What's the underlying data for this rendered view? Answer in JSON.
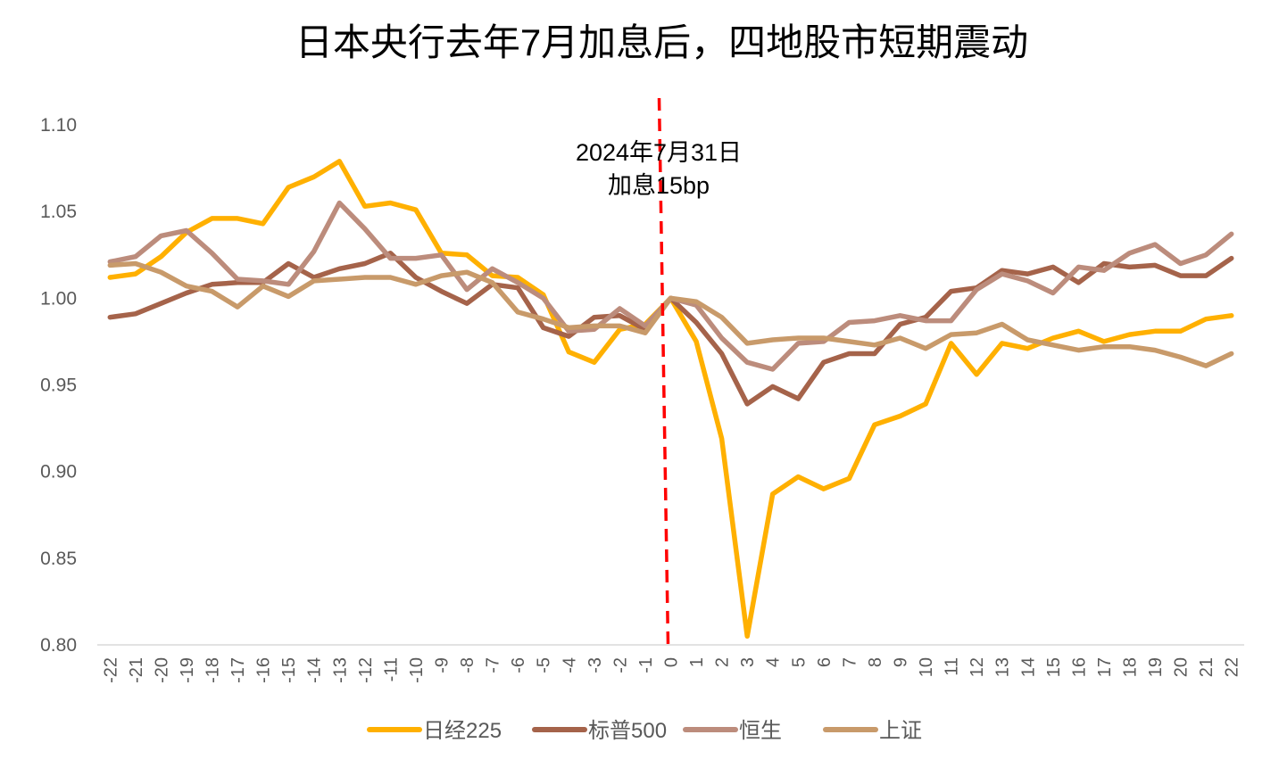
{
  "chart_data": {
    "type": "line",
    "title": "日本央行去年7月加息后，四地股市短期震动",
    "xlabel": "",
    "ylabel": "",
    "x": [
      -22,
      -21,
      -20,
      -19,
      -18,
      -17,
      -16,
      -15,
      -14,
      -13,
      -12,
      -11,
      -10,
      -9,
      -8,
      -7,
      -6,
      -5,
      -4,
      -3,
      -2,
      -1,
      0,
      1,
      2,
      3,
      4,
      5,
      6,
      7,
      8,
      9,
      10,
      11,
      12,
      13,
      14,
      15,
      16,
      17,
      18,
      19,
      20,
      21,
      22
    ],
    "ylim": [
      0.8,
      1.1
    ],
    "yticks": [
      "0.80",
      "0.85",
      "0.90",
      "0.95",
      "1.00",
      "1.05",
      "1.10"
    ],
    "ytick_values": [
      0.8,
      0.85,
      0.9,
      0.95,
      1.0,
      1.05,
      1.1
    ],
    "grid": false,
    "legend_position": "bottom",
    "series": [
      {
        "name": "日经225",
        "color": "#FFB000",
        "values": [
          1.012,
          1.014,
          1.024,
          1.038,
          1.046,
          1.046,
          1.043,
          1.064,
          1.07,
          1.079,
          1.053,
          1.055,
          1.051,
          1.026,
          1.025,
          1.013,
          1.012,
          1.002,
          0.969,
          0.963,
          0.982,
          0.985,
          1.0,
          0.975,
          0.919,
          0.805,
          0.887,
          0.897,
          0.89,
          0.896,
          0.927,
          0.932,
          0.939,
          0.974,
          0.956,
          0.974,
          0.971,
          0.977,
          0.981,
          0.975,
          0.979,
          0.981,
          0.981,
          0.988,
          0.99
        ]
      },
      {
        "name": "标普500",
        "color": "#A5634A",
        "values": [
          0.989,
          0.991,
          0.997,
          1.003,
          1.008,
          1.009,
          1.009,
          1.02,
          1.012,
          1.017,
          1.02,
          1.026,
          1.012,
          1.004,
          0.997,
          1.008,
          1.006,
          0.983,
          0.978,
          0.989,
          0.99,
          0.982,
          1.0,
          0.986,
          0.968,
          0.939,
          0.949,
          0.942,
          0.963,
          0.968,
          0.968,
          0.985,
          0.989,
          1.004,
          1.006,
          1.016,
          1.014,
          1.018,
          1.009,
          1.02,
          1.018,
          1.019,
          1.013,
          1.013,
          1.023
        ]
      },
      {
        "name": "恒生",
        "color": "#BC8C7C",
        "values": [
          1.021,
          1.024,
          1.036,
          1.039,
          1.026,
          1.011,
          1.01,
          1.008,
          1.027,
          1.055,
          1.04,
          1.023,
          1.023,
          1.025,
          1.005,
          1.017,
          1.009,
          1.0,
          0.981,
          0.982,
          0.994,
          0.984,
          1.0,
          0.996,
          0.977,
          0.963,
          0.959,
          0.974,
          0.975,
          0.986,
          0.987,
          0.99,
          0.987,
          0.987,
          1.005,
          1.014,
          1.01,
          1.003,
          1.018,
          1.016,
          1.026,
          1.031,
          1.02,
          1.025,
          1.037
        ]
      },
      {
        "name": "上证",
        "color": "#C89A6A",
        "values": [
          1.019,
          1.02,
          1.015,
          1.007,
          1.004,
          0.995,
          1.007,
          1.001,
          1.01,
          1.011,
          1.012,
          1.012,
          1.008,
          1.013,
          1.015,
          1.009,
          0.992,
          0.988,
          0.983,
          0.984,
          0.984,
          0.98,
          1.0,
          0.998,
          0.989,
          0.974,
          0.976,
          0.977,
          0.977,
          0.975,
          0.973,
          0.977,
          0.971,
          0.979,
          0.98,
          0.985,
          0.976,
          0.973,
          0.97,
          0.972,
          0.972,
          0.97,
          0.966,
          0.961,
          0.968
        ]
      }
    ],
    "event_line": {
      "x": 0,
      "color": "#FF0000",
      "style": "dashed",
      "annotation_line1": "2024年7月31日",
      "annotation_line2": "加息15bp"
    }
  }
}
